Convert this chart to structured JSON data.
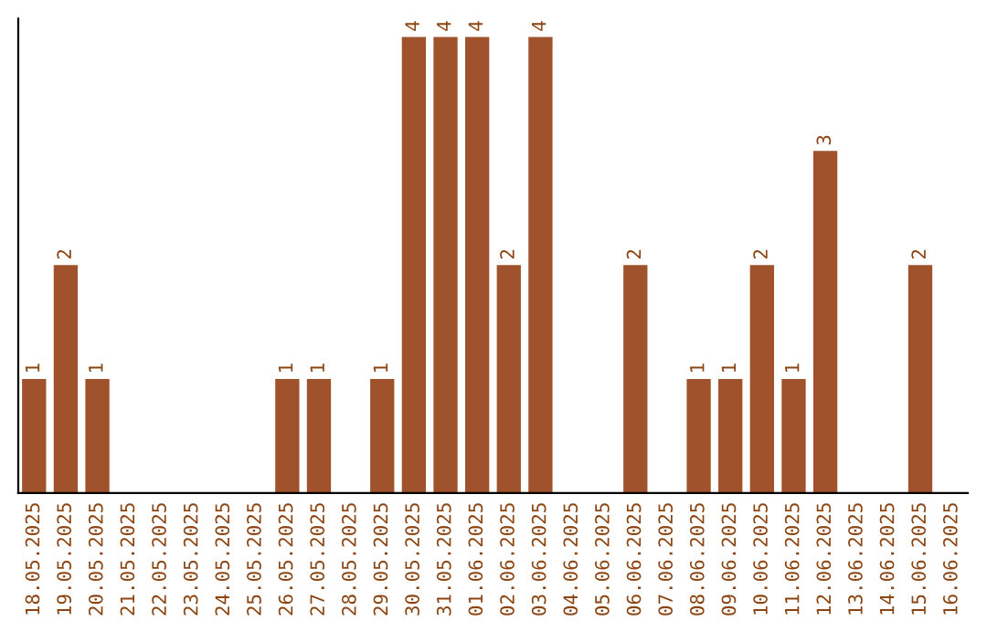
{
  "chart_data": {
    "type": "bar",
    "categories": [
      "18.05.2025",
      "19.05.2025",
      "20.05.2025",
      "21.05.2025",
      "22.05.2025",
      "23.05.2025",
      "24.05.2025",
      "25.05.2025",
      "26.05.2025",
      "27.05.2025",
      "28.05.2025",
      "29.05.2025",
      "30.05.2025",
      "31.05.2025",
      "01.06.2025",
      "02.06.2025",
      "03.06.2025",
      "04.06.2025",
      "05.06.2025",
      "06.06.2025",
      "07.06.2025",
      "08.06.2025",
      "09.06.2025",
      "10.06.2025",
      "11.06.2025",
      "12.06.2025",
      "13.06.2025",
      "14.06.2025",
      "15.06.2025",
      "16.06.2025"
    ],
    "values": [
      1,
      2,
      1,
      0,
      0,
      0,
      0,
      0,
      1,
      1,
      0,
      1,
      4,
      4,
      4,
      2,
      4,
      0,
      0,
      2,
      0,
      1,
      1,
      2,
      1,
      3,
      0,
      0,
      2,
      0
    ],
    "value_labels": [
      "1",
      "2",
      "1",
      null,
      null,
      null,
      null,
      null,
      "1",
      "1",
      null,
      "1",
      "4",
      "4",
      "4",
      "2",
      "4",
      null,
      null,
      "2",
      null,
      "1",
      "1",
      "2",
      "1",
      "3",
      null,
      null,
      "2",
      null
    ],
    "color": "#a0522d",
    "tick_labels": "x"
  }
}
